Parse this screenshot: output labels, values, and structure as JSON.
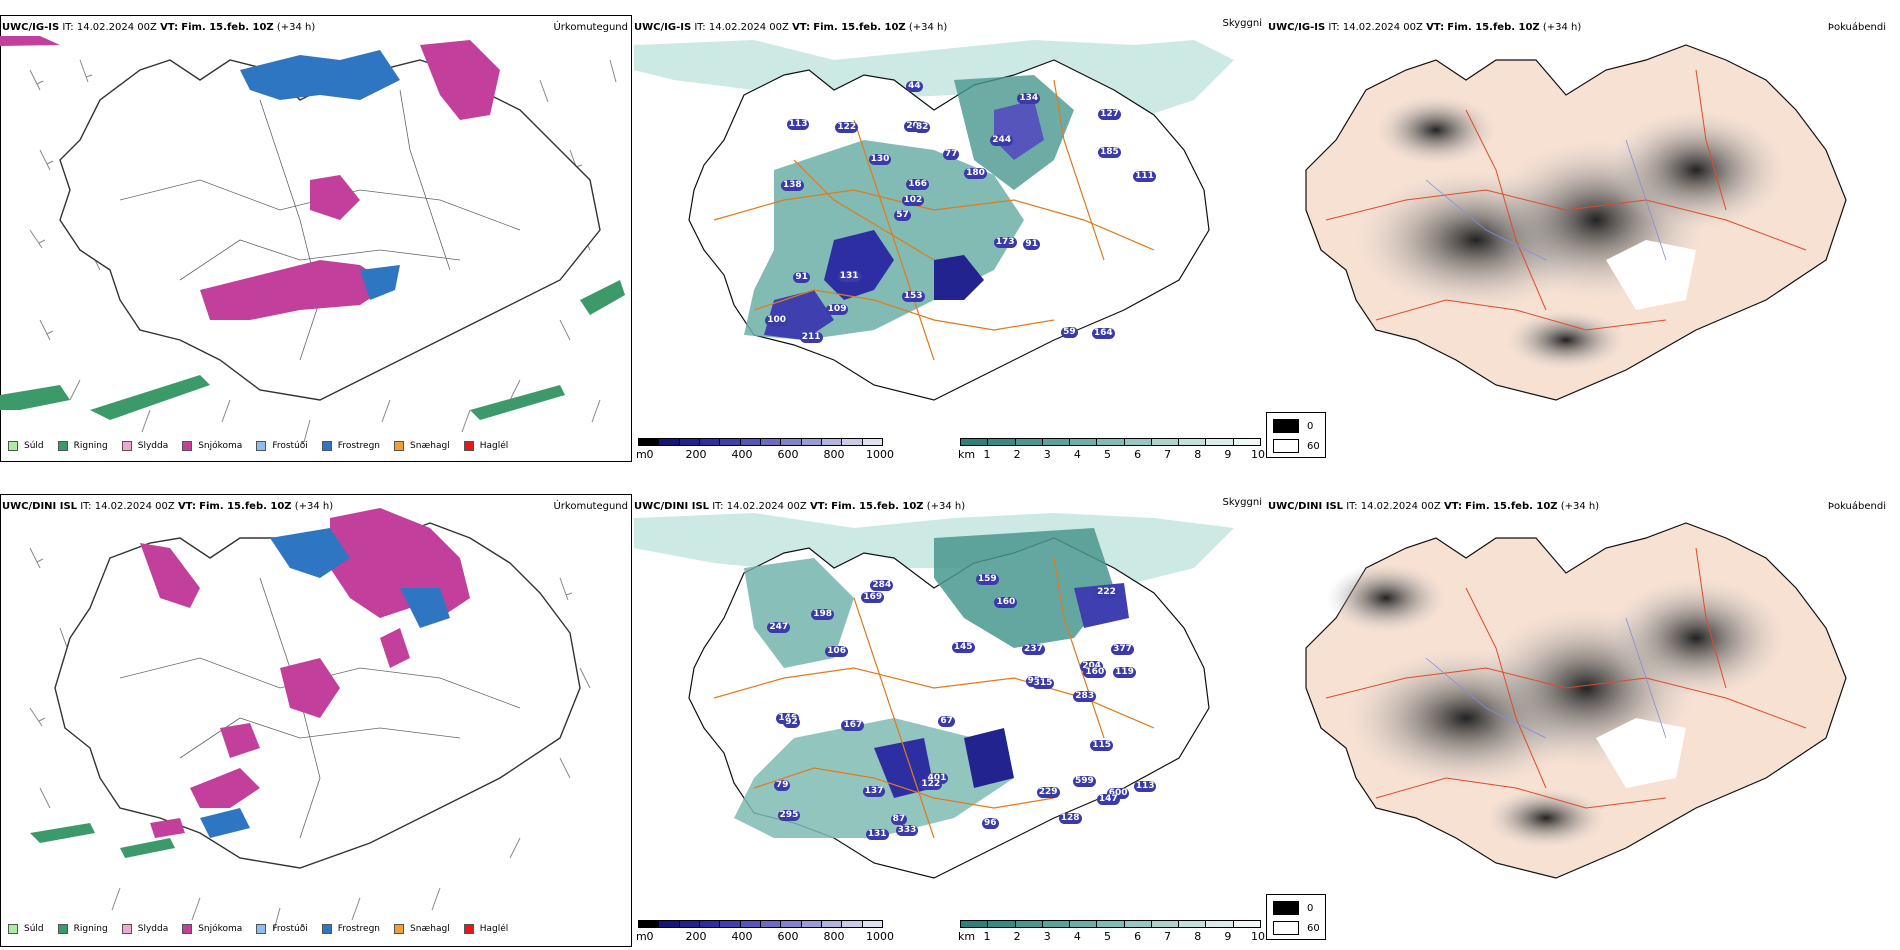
{
  "rows": [
    {
      "model": "UWC/IG-IS",
      "it_label": "IT:",
      "it_value": "14.02.2024 00Z",
      "vt_label": "VT:",
      "vt_value": "Fim. 15.feb. 10Z",
      "lead": "(+34 h)"
    },
    {
      "model": "UWC/DINI ISL",
      "it_label": "IT:",
      "it_value": "14.02.2024 00Z",
      "vt_label": "VT:",
      "vt_value": "Fim. 15.feb. 10Z",
      "lead": "(+34 h)"
    }
  ],
  "panel_titles": {
    "precip": "Úrkomutegund",
    "cloud": "Skyggni",
    "fog": "Þokuábendi"
  },
  "precip_legend": [
    {
      "label": "Súld",
      "color": "#a8f0a0"
    },
    {
      "label": "Rigning",
      "color": "#3c9a6a"
    },
    {
      "label": "Slydda",
      "color": "#f2a6d2"
    },
    {
      "label": "Snjókoma",
      "color": "#c23f9b"
    },
    {
      "label": "Frostúði",
      "color": "#8cbff0"
    },
    {
      "label": "Frostregn",
      "color": "#2f76c2"
    },
    {
      "label": "Snæhagl",
      "color": "#f2a033"
    },
    {
      "label": "Haglél",
      "color": "#e31a1c"
    }
  ],
  "colorbar_m": {
    "unit": "m",
    "ticks": [
      "0",
      "200",
      "400",
      "600",
      "800",
      "1000"
    ],
    "colors": [
      "#000000",
      "#14147a",
      "#23238f",
      "#2e2ea3",
      "#3f3fb0",
      "#5555bb",
      "#6b6bc4",
      "#8383cd",
      "#9b9bd7",
      "#b3b3e0",
      "#cacae9",
      "#e0e0f3"
    ]
  },
  "colorbar_km": {
    "unit": "km",
    "ticks": [
      "1",
      "2",
      "3",
      "4",
      "5",
      "6",
      "7",
      "8",
      "9",
      "10"
    ],
    "colors": [
      "#2f7f7a",
      "#3a8a84",
      "#49978f",
      "#5aa39b",
      "#6cafa7",
      "#80bbb4",
      "#95c8c1",
      "#abd4cf",
      "#c2e1dc",
      "#d9eeea",
      "#f0f8f7"
    ]
  },
  "fog_legend": {
    "items": [
      {
        "label": "0",
        "color": "#000000"
      },
      {
        "label": "60",
        "color": "#ffffff"
      }
    ]
  },
  "top_visibility_values": [
    "164",
    "138",
    "127",
    "57",
    "244",
    "211",
    "202",
    "77",
    "91",
    "130",
    "100",
    "109",
    "82",
    "180",
    "91",
    "113",
    "44",
    "111",
    "173",
    "185",
    "102",
    "153",
    "166",
    "122",
    "134",
    "131",
    "59"
  ],
  "bottom_visibility_values": [
    "599",
    "377",
    "600",
    "145",
    "295",
    "284",
    "204",
    "137",
    "222",
    "106",
    "119",
    "247",
    "283",
    "333",
    "79",
    "198",
    "147",
    "169",
    "401",
    "160",
    "146",
    "92",
    "96",
    "95",
    "87",
    "122",
    "159",
    "160",
    "237",
    "113",
    "167",
    "229",
    "131",
    "67",
    "115",
    "128",
    "315"
  ]
}
